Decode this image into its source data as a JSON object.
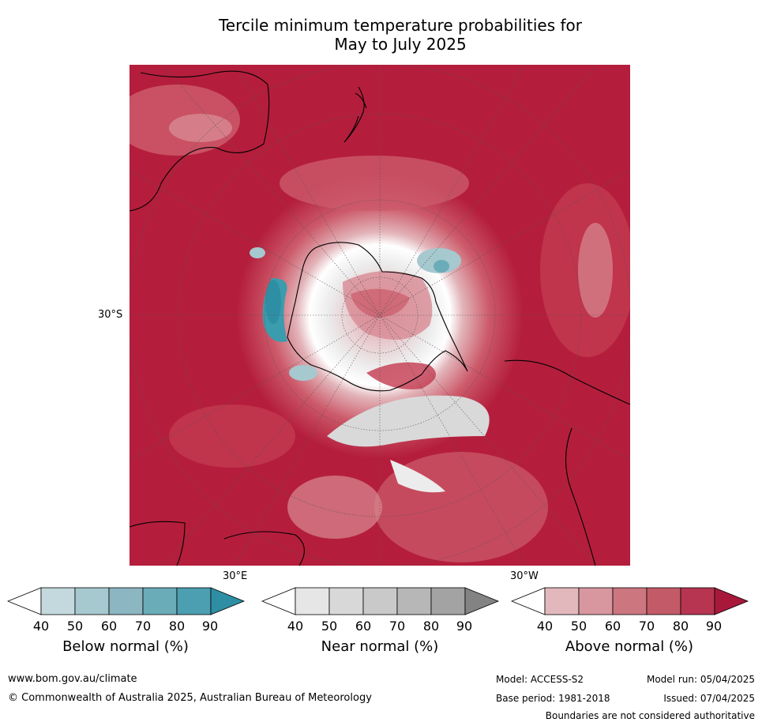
{
  "title": {
    "line1": "Tercile minimum temperature probabilities for",
    "line2": "May to July 2025"
  },
  "map": {
    "projection": "south-polar-stereographic",
    "labels": {
      "lat_30s": "30°S",
      "lon_30e": "30°E",
      "lon_30w": "30°W"
    },
    "colors": {
      "above_90": "#b41e3c",
      "above_80": "#c33a50",
      "above_70": "#cc5a6a",
      "above_60": "#d88a93",
      "above_50": "#e2b4b9",
      "near_50": "#d9d9d9",
      "near_40": "#ededed",
      "below_50": "#a6c8cf",
      "below_80": "#3b9cae"
    }
  },
  "colorbars": [
    {
      "name": "below",
      "label": "Below normal (%)",
      "ticks": [
        "40",
        "50",
        "60",
        "70",
        "80",
        "90"
      ],
      "colors": [
        "#ffffff",
        "#c3d9de",
        "#a6c8cf",
        "#8bb6c2",
        "#6aacb8",
        "#4b9fb0",
        "#2e8ea3"
      ]
    },
    {
      "name": "near",
      "label": "Near normal (%)",
      "ticks": [
        "40",
        "50",
        "60",
        "70",
        "80",
        "90"
      ],
      "colors": [
        "#ffffff",
        "#e6e6e6",
        "#d8d8d8",
        "#c9c9c9",
        "#b7b7b7",
        "#a3a3a3",
        "#838383"
      ]
    },
    {
      "name": "above",
      "label": "Above normal (%)",
      "ticks": [
        "40",
        "50",
        "60",
        "70",
        "80",
        "90"
      ],
      "colors": [
        "#ffffff",
        "#e2b8bd",
        "#d8979f",
        "#cc7680",
        "#c35a68",
        "#b73550",
        "#a8183a"
      ]
    }
  ],
  "footer": {
    "url": "www.bom.gov.au/climate",
    "copyright": "© Commonwealth of Australia 2025, Australian Bureau of Meteorology",
    "model": "Model: ACCESS-S2",
    "base_period": "Base period: 1981-2018",
    "model_run": "Model run: 05/04/2025",
    "issued": "Issued: 07/04/2025",
    "disclaimer": "Boundaries are not considered authoritative"
  }
}
